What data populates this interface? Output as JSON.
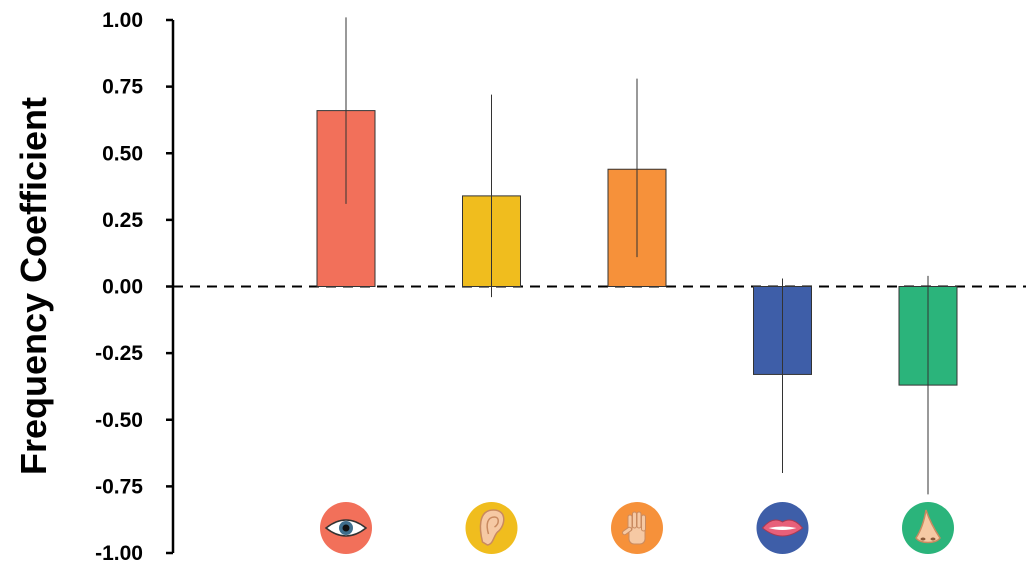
{
  "chart_data": {
    "type": "bar",
    "categories": [
      "sight",
      "hearing",
      "touch",
      "taste",
      "smell"
    ],
    "icons": [
      "eye-icon",
      "ear-icon",
      "hand-icon",
      "mouth-icon",
      "nose-icon"
    ],
    "values": [
      0.66,
      0.34,
      0.44,
      -0.33,
      -0.37
    ],
    "errors": [
      {
        "low": 0.31,
        "high": 1.01
      },
      {
        "low": -0.04,
        "high": 0.72
      },
      {
        "low": 0.11,
        "high": 0.78
      },
      {
        "low": -0.7,
        "high": 0.03
      },
      {
        "low": -0.78,
        "high": 0.04
      }
    ],
    "colors": [
      "#f2705a",
      "#f0bd1e",
      "#f6913a",
      "#3e5ea8",
      "#2bb47b"
    ],
    "ylabel": "Frequency Coefficient",
    "ylim": [
      -1.0,
      1.0
    ],
    "yticks": [
      "1.00",
      "0.75",
      "0.50",
      "0.25",
      "0.00",
      "-0.25",
      "-0.50",
      "-0.75",
      "-1.00"
    ],
    "reference_line": {
      "y": 0.0,
      "style": "dashed"
    },
    "grid": false,
    "legend": "none"
  }
}
